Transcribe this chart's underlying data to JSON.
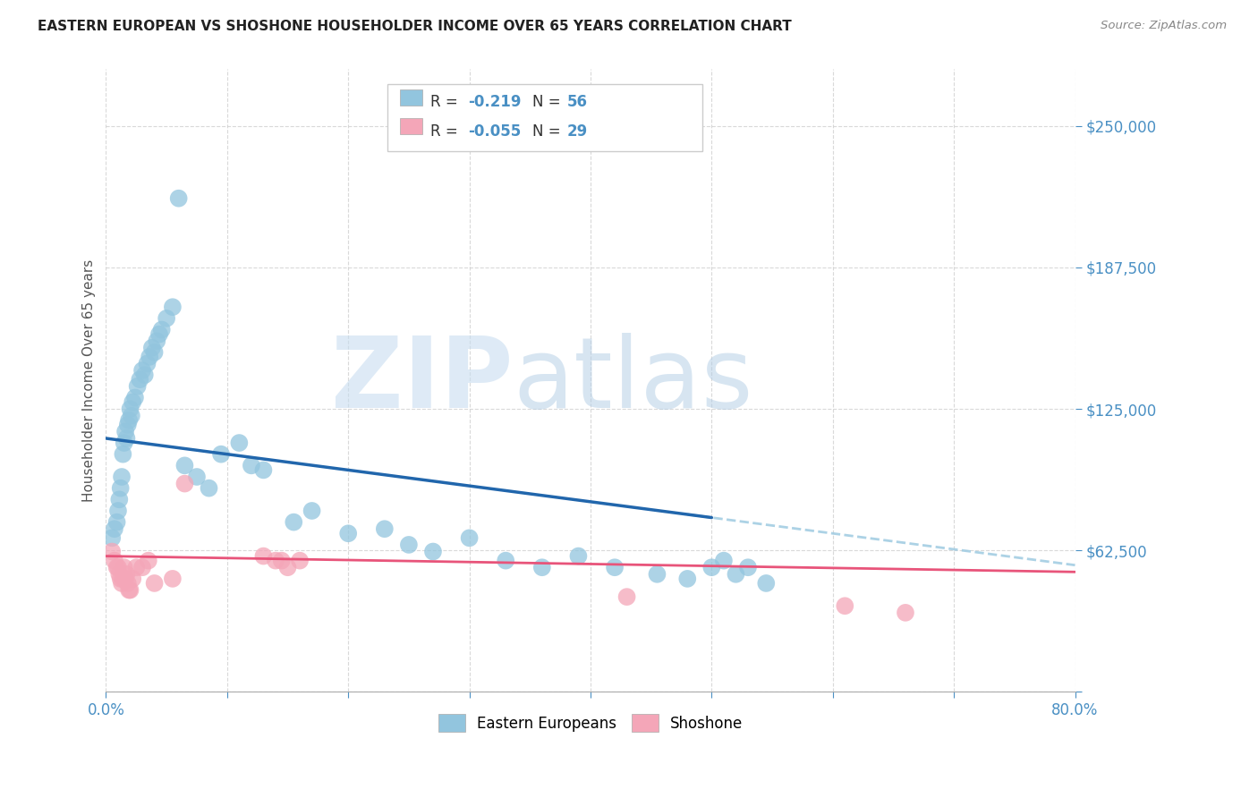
{
  "title": "EASTERN EUROPEAN VS SHOSHONE HOUSEHOLDER INCOME OVER 65 YEARS CORRELATION CHART",
  "source": "Source: ZipAtlas.com",
  "ylabel": "Householder Income Over 65 years",
  "xlim": [
    0.0,
    0.8
  ],
  "ylim": [
    0,
    275000
  ],
  "yticks": [
    0,
    62500,
    125000,
    187500,
    250000
  ],
  "xticks": [
    0.0,
    0.1,
    0.2,
    0.3,
    0.4,
    0.5,
    0.6,
    0.7,
    0.8
  ],
  "blue_color": "#92c5de",
  "pink_color": "#f4a6b8",
  "line_blue": "#2166ac",
  "line_pink": "#e8547a",
  "dashed_color": "#9ecae1",
  "ee_x": [
    0.005,
    0.007,
    0.009,
    0.01,
    0.011,
    0.012,
    0.013,
    0.014,
    0.015,
    0.016,
    0.017,
    0.018,
    0.019,
    0.02,
    0.021,
    0.022,
    0.024,
    0.026,
    0.028,
    0.03,
    0.032,
    0.034,
    0.036,
    0.038,
    0.04,
    0.042,
    0.044,
    0.046,
    0.05,
    0.055,
    0.06,
    0.065,
    0.075,
    0.085,
    0.095,
    0.11,
    0.12,
    0.13,
    0.155,
    0.17,
    0.2,
    0.23,
    0.25,
    0.27,
    0.3,
    0.33,
    0.36,
    0.39,
    0.42,
    0.455,
    0.48,
    0.5,
    0.51,
    0.52,
    0.53,
    0.545
  ],
  "ee_y": [
    68000,
    72000,
    75000,
    80000,
    85000,
    90000,
    95000,
    105000,
    110000,
    115000,
    112000,
    118000,
    120000,
    125000,
    122000,
    128000,
    130000,
    135000,
    138000,
    142000,
    140000,
    145000,
    148000,
    152000,
    150000,
    155000,
    158000,
    160000,
    165000,
    170000,
    218000,
    100000,
    95000,
    90000,
    105000,
    110000,
    100000,
    98000,
    75000,
    80000,
    70000,
    72000,
    65000,
    62000,
    68000,
    58000,
    55000,
    60000,
    55000,
    52000,
    50000,
    55000,
    58000,
    52000,
    55000,
    48000
  ],
  "sh_x": [
    0.005,
    0.007,
    0.009,
    0.01,
    0.011,
    0.012,
    0.013,
    0.014,
    0.015,
    0.016,
    0.017,
    0.018,
    0.019,
    0.02,
    0.022,
    0.025,
    0.03,
    0.035,
    0.04,
    0.055,
    0.065,
    0.13,
    0.14,
    0.145,
    0.15,
    0.16,
    0.43,
    0.61,
    0.66
  ],
  "sh_y": [
    62000,
    58000,
    55000,
    55000,
    52000,
    50000,
    48000,
    50000,
    55000,
    50000,
    52000,
    48000,
    45000,
    45000,
    50000,
    55000,
    55000,
    58000,
    48000,
    50000,
    92000,
    60000,
    58000,
    58000,
    55000,
    58000,
    42000,
    38000,
    35000
  ]
}
